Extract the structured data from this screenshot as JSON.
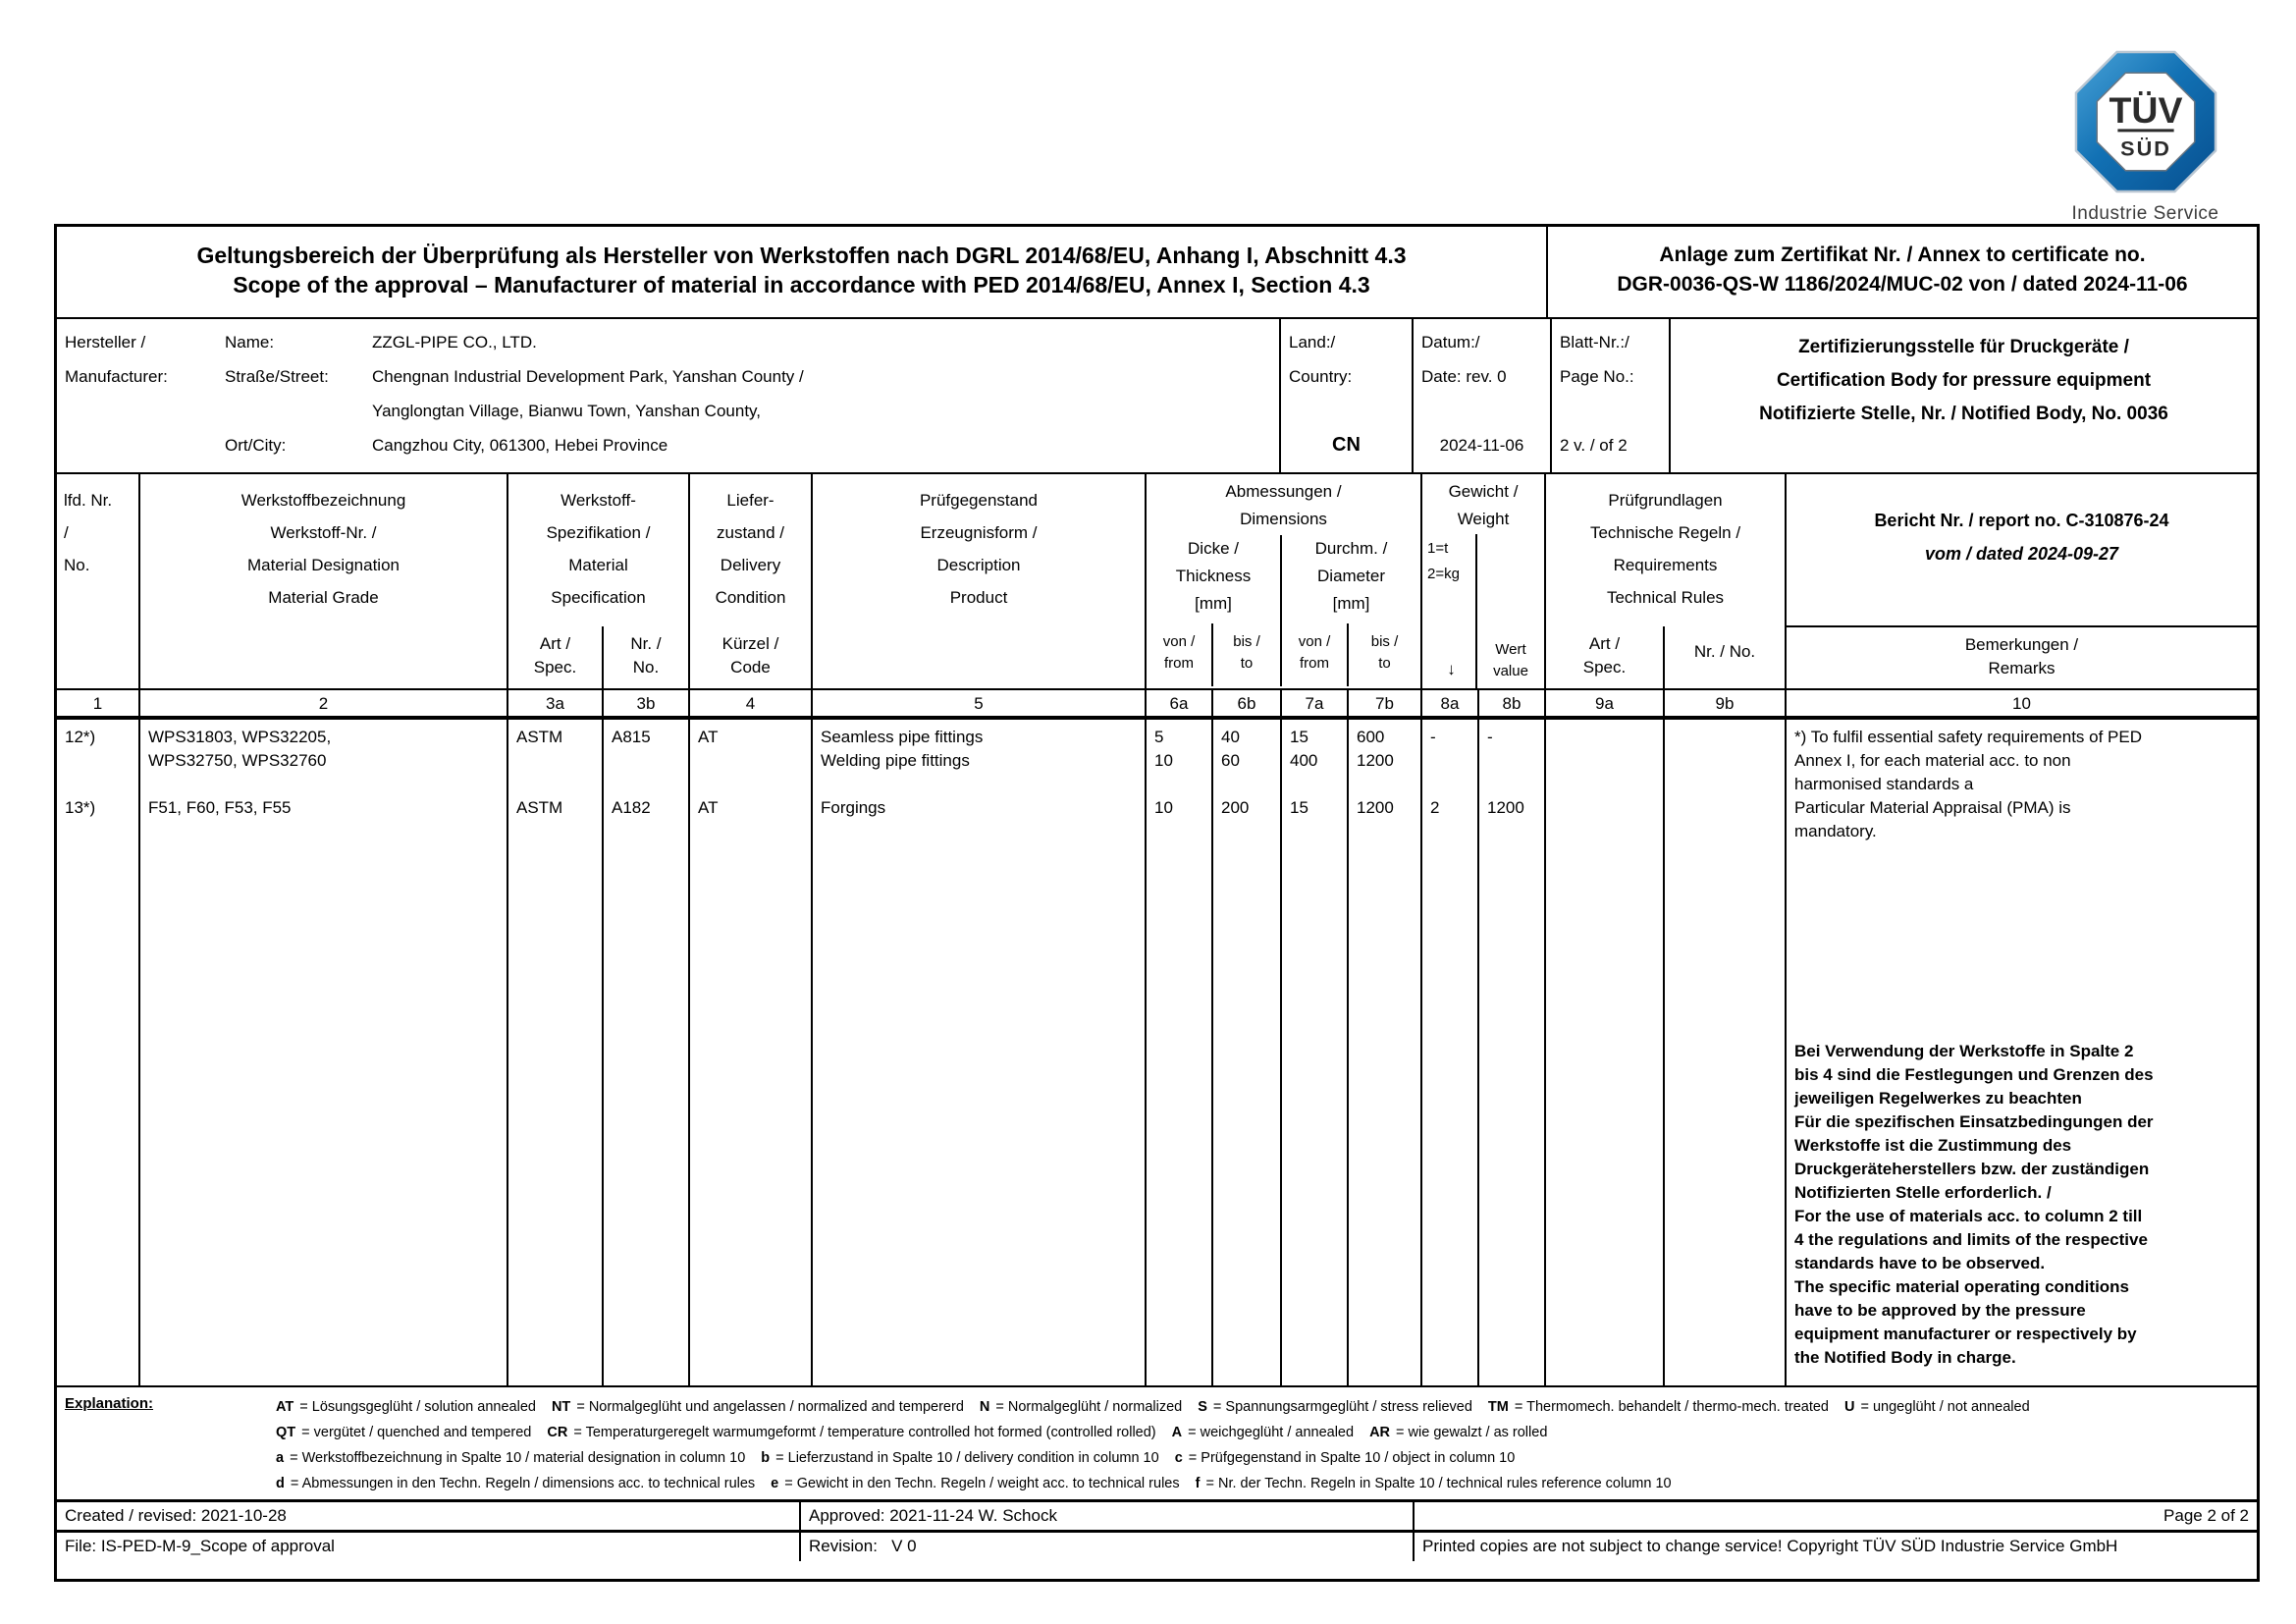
{
  "logo": {
    "tuv": "TÜV",
    "sud": "SÜD",
    "subtitle": "Industrie Service",
    "blue_dark": "#085a9d",
    "blue_light": "#3d96cc"
  },
  "header": {
    "title_de": "Geltungsbereich der Überprüfung als Hersteller von Werkstoffen nach DGRL 2014/68/EU, Anhang I, Abschnitt 4.3",
    "title_en": "Scope of the approval – Manufacturer of material in accordance with PED 2014/68/EU, Annex I, Section 4.3",
    "annex_line1": "Anlage zum Zertifikat Nr. / Annex to certificate no.",
    "annex_line2": "DGR-0036-QS-W 1186/2024/MUC-02 von / dated 2024-11-06"
  },
  "manufacturer": {
    "label_de": "Hersteller /",
    "label_en": "Manufacturer:",
    "name_label": "Name:",
    "name_value": "ZZGL-PIPE CO., LTD.",
    "street_label": "Straße/Street:",
    "street_value1": "Chengnan Industrial Development Park, Yanshan County /",
    "street_value2": "Yanglongtan Village, Bianwu Town, Yanshan County,",
    "city_label": "Ort/City:",
    "city_value": "Cangzhou City, 061300, Hebei Province",
    "country_label": "Land:/\nCountry:",
    "country_value": "CN",
    "date_label": "Datum:/\nDate: rev. 0",
    "date_value": "2024-11-06",
    "page_label": "Blatt-Nr.:/\nPage No.:",
    "page_value": "2 v. / of 2",
    "cert_body": "Zertifizierungsstelle für Druckgeräte /\nCertification Body for pressure equipment\nNotifizierte Stelle, Nr. / Notified Body, No. 0036"
  },
  "table": {
    "headers": {
      "no": "lfd. Nr.\n/\nNo.",
      "designation": "Werkstoffbezeichnung\nWerkstoff-Nr. /\nMaterial Designation\nMaterial Grade",
      "spec_group": "Werkstoff-\nSpezifikation /\nMaterial\nSpecification",
      "spec_a": "Art /\nSpec.",
      "spec_b": "Nr. /\nNo.",
      "delivery": "Liefer-\nzustand /\nDelivery\nCondition",
      "delivery_sub": "Kürzel /\nCode",
      "product": "Prüfgegenstand\nErzeugnisform /\nDescription\nProduct",
      "dimensions": "Abmessungen /\nDimensions",
      "thickness": "Dicke /\nThickness\n[mm]",
      "diameter": "Durchm. /\nDiameter\n[mm]",
      "from": "von /\nfrom",
      "to": "bis /\nto",
      "weight": "Gewicht /\nWeight",
      "weight_unit": "1=t\n2=kg",
      "weight_arrow": "↓",
      "weight_value": "Wert\nvalue",
      "rules_group": "Prüfgrundlagen\nTechnische Regeln /\nRequirements\nTechnical Rules",
      "rules_a": "Art /\nSpec.",
      "rules_b": "Nr. / No.",
      "report_no": "Bericht Nr. / report no. C-310876-24",
      "report_dated": "vom / dated 2024-09-27",
      "remarks": "Bemerkungen /\nRemarks"
    },
    "col_numbers": [
      "1",
      "2",
      "3a",
      "3b",
      "4",
      "5",
      "6a",
      "6b",
      "7a",
      "7b",
      "8a",
      "8b",
      "9a",
      "9b",
      "10"
    ],
    "body": {
      "no": "12*)\n\n\n13*)",
      "designation": "WPS31803, WPS32205,\nWPS32750, WPS32760\n\nF51, F60, F53, F55",
      "spec_a": "ASTM\n\n\nASTM",
      "spec_b": "A815\n\n\nA182",
      "delivery": "AT\n\n\nAT",
      "product": "Seamless pipe fittings\nWelding pipe fittings\n\nForgings",
      "thickness_from": "5\n10\n\n10",
      "thickness_to": "40\n60\n\n200",
      "diameter_from": "15\n400\n\n15",
      "diameter_to": "600\n1200\n\n1200",
      "weight_unit": "-\n\n\n2",
      "weight_value": "-\n\n\n1200",
      "rules_a": "",
      "rules_b": "",
      "remark_note": "*) To fulfil essential safety requirements of PED\nAnnex I, for each material acc. to non\nharmonised standards a\nParticular Material Appraisal (PMA) is\nmandatory.",
      "remark_main": "Bei Verwendung der Werkstoffe in Spalte 2\nbis 4 sind die Festlegungen und Grenzen des\njeweiligen Regelwerkes zu beachten\nFür die spezifischen Einsatzbedingungen der\nWerkstoffe ist die Zustimmung des\nDruckgeräteherstellers bzw. der zuständigen\nNotifizierten Stelle erforderlich. /\nFor the use of materials acc. to column 2 till\n4 the regulations and limits of the respective\nstandards have to be observed.\nThe specific material operating conditions\nhave to be approved by the pressure\nequipment manufacturer or respectively by\nthe Notified Body in charge."
    }
  },
  "explanation": {
    "label": "Explanation:",
    "lines": [
      [
        {
          "k": "AT",
          "v": "Lösungsgeglüht / solution annealed"
        },
        {
          "k": "NT",
          "v": "Normalgeglüht und angelassen / normalized and tempererd"
        },
        {
          "k": "N",
          "v": "Normalgeglüht / normalized"
        },
        {
          "k": "S",
          "v": "Spannungsarmgeglüht / stress relieved"
        },
        {
          "k": "TM",
          "v": "Thermomech. behandelt / thermo-mech. treated"
        },
        {
          "k": "U",
          "v": "ungeglüht / not annealed"
        }
      ],
      [
        {
          "k": "QT",
          "v": "vergütet / quenched and tempered"
        },
        {
          "k": "CR",
          "v": "Temperaturgeregelt warmumgeformt / temperature controlled hot formed (controlled rolled)"
        },
        {
          "k": "A",
          "v": "weichgeglüht / annealed"
        },
        {
          "k": "AR",
          "v": "wie gewalzt / as rolled"
        }
      ],
      [
        {
          "k": "a",
          "v": "Werkstoffbezeichnung in Spalte 10 / material designation in column 10"
        },
        {
          "k": "b",
          "v": "Lieferzustand in Spalte 10 / delivery condition in column 10"
        },
        {
          "k": "c",
          "v": "Prüfgegenstand in Spalte 10 / object in column 10"
        }
      ],
      [
        {
          "k": "d",
          "v": "Abmessungen in den Techn. Regeln / dimensions acc. to technical rules"
        },
        {
          "k": "e",
          "v": "Gewicht in den Techn. Regeln / weight acc. to technical rules"
        },
        {
          "k": "f",
          "v": "Nr. der Techn. Regeln in Spalte 10 / technical rules reference column 10"
        }
      ]
    ]
  },
  "footer": {
    "created": "Created / revised: 2021-10-28",
    "approved": "Approved: 2021-11-24 W. Schock",
    "page": "Page 2 of 2",
    "file": "File: IS-PED-M-9_Scope of approval",
    "revision": "Revision:   V 0",
    "copyright": "Printed copies are not subject to change service! Copyright TÜV SÜD Industrie Service GmbH"
  }
}
